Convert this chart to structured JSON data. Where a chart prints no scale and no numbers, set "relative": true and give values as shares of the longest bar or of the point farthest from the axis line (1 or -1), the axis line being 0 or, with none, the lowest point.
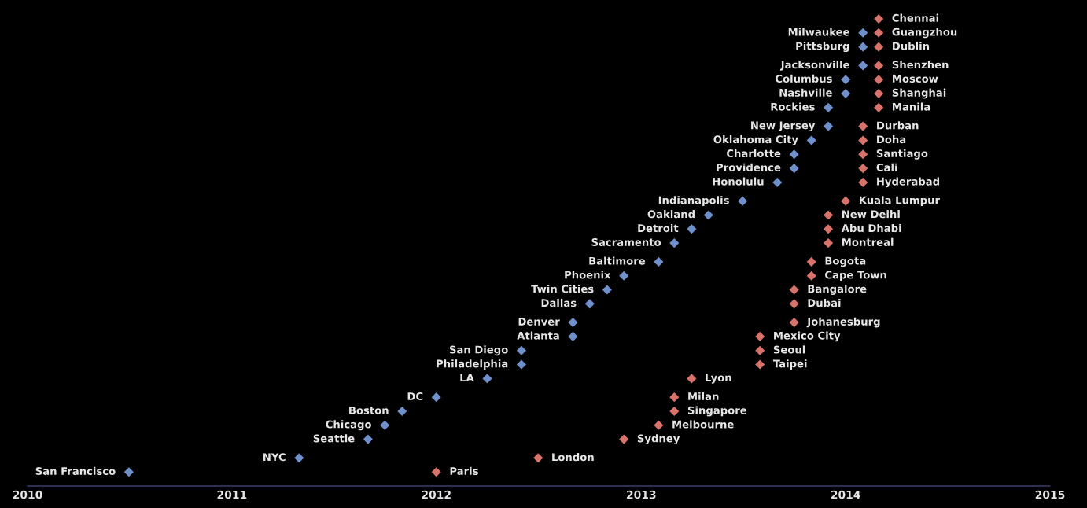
{
  "chart_data": {
    "type": "scatter",
    "relative": true,
    "marker": "diamond",
    "tick_labels": "x",
    "grid": false,
    "legend": false,
    "xlim": [
      "2010",
      "2015"
    ],
    "xticks": [
      "2010",
      "2011",
      "2012",
      "2013",
      "2014",
      "2015"
    ],
    "series": [
      {
        "color": "#7090cc",
        "x": [
          "2010-07",
          "2011-05",
          "2011-09",
          "2011-10",
          "2011-11",
          "2012-01",
          "2012-04",
          "2012-06",
          "2012-06",
          "2012-09",
          "2012-09",
          "2012-10",
          "2012-11",
          "2012-12",
          "2013-02",
          "2013-03",
          "2013-04",
          "2013-05",
          "2013-07",
          "2013-09",
          "2013-10",
          "2013-10",
          "2013-11",
          "2013-12",
          "2013-12",
          "2014-01",
          "2014-01",
          "2014-02",
          "2014-02",
          "2014-02"
        ],
        "values": [
          0.03,
          0.06,
          0.1,
          0.13,
          0.16,
          0.19,
          0.23,
          0.26,
          0.29,
          0.32,
          0.35,
          0.39,
          0.42,
          0.45,
          0.48,
          0.52,
          0.55,
          0.58,
          0.61,
          0.65,
          0.68,
          0.71,
          0.74,
          0.77,
          0.81,
          0.84,
          0.87,
          0.9,
          0.94,
          0.97
        ]
      },
      {
        "color": "#d8736b",
        "x": [
          "2012-01",
          "2012-07",
          "2012-12",
          "2013-02",
          "2013-03",
          "2013-03",
          "2013-04",
          "2013-08",
          "2013-08",
          "2013-08",
          "2013-10",
          "2013-10",
          "2013-10",
          "2013-11",
          "2013-11",
          "2013-12",
          "2013-12",
          "2013-12",
          "2014-01",
          "2014-02",
          "2014-02",
          "2014-02",
          "2014-02",
          "2014-02",
          "2014-03",
          "2014-03",
          "2014-03",
          "2014-03",
          "2014-03",
          "2014-03",
          "2014-03"
        ],
        "values": [
          0.03,
          0.06,
          0.1,
          0.13,
          0.16,
          0.19,
          0.23,
          0.26,
          0.29,
          0.32,
          0.35,
          0.39,
          0.42,
          0.45,
          0.48,
          0.52,
          0.55,
          0.58,
          0.61,
          0.65,
          0.68,
          0.71,
          0.74,
          0.77,
          0.81,
          0.84,
          0.87,
          0.9,
          0.94,
          0.97,
          1
        ]
      }
    ],
    "annotations": [
      {
        "text": "San Francisco",
        "x": "2010-07",
        "y": 0.03
      },
      {
        "text": "NYC",
        "x": "2011-05",
        "y": 0.06
      },
      {
        "text": "Seattle",
        "x": "2011-09",
        "y": 0.1
      },
      {
        "text": "Chicago",
        "x": "2011-10",
        "y": 0.13
      },
      {
        "text": "Boston",
        "x": "2011-11",
        "y": 0.16
      },
      {
        "text": "DC",
        "x": "2012-01",
        "y": 0.19
      },
      {
        "text": "LA",
        "x": "2012-04",
        "y": 0.23
      },
      {
        "text": "Philadelphia",
        "x": "2012-06",
        "y": 0.26
      },
      {
        "text": "San Diego",
        "x": "2012-06",
        "y": 0.29
      },
      {
        "text": "Atlanta",
        "x": "2012-09",
        "y": 0.32
      },
      {
        "text": "Denver",
        "x": "2012-09",
        "y": 0.35
      },
      {
        "text": "Dallas",
        "x": "2012-10",
        "y": 0.39
      },
      {
        "text": "Twin Cities",
        "x": "2012-11",
        "y": 0.42
      },
      {
        "text": "Phoenix",
        "x": "2012-12",
        "y": 0.45
      },
      {
        "text": "Baltimore",
        "x": "2013-02",
        "y": 0.48
      },
      {
        "text": "Sacramento",
        "x": "2013-03",
        "y": 0.52
      },
      {
        "text": "Detroit",
        "x": "2013-04",
        "y": 0.55
      },
      {
        "text": "Oakland",
        "x": "2013-05",
        "y": 0.58
      },
      {
        "text": "Indianapolis",
        "x": "2013-07",
        "y": 0.61
      },
      {
        "text": "Honolulu",
        "x": "2013-09",
        "y": 0.65
      },
      {
        "text": "Providence",
        "x": "2013-10",
        "y": 0.68
      },
      {
        "text": "Charlotte",
        "x": "2013-10",
        "y": 0.71
      },
      {
        "text": "Oklahoma City",
        "x": "2013-11",
        "y": 0.74
      },
      {
        "text": "New Jersey",
        "x": "2013-12",
        "y": 0.77
      },
      {
        "text": "Rockies",
        "x": "2013-12",
        "y": 0.81
      },
      {
        "text": "Nashville",
        "x": "2014-01",
        "y": 0.84
      },
      {
        "text": "Columbus",
        "x": "2014-01",
        "y": 0.87
      },
      {
        "text": "Jacksonville",
        "x": "2014-02",
        "y": 0.9
      },
      {
        "text": "Pittsburg",
        "x": "2014-02",
        "y": 0.94
      },
      {
        "text": "Milwaukee",
        "x": "2014-02",
        "y": 0.97
      },
      {
        "text": "Paris",
        "x": "2012-01",
        "y": 0.03
      },
      {
        "text": "London",
        "x": "2012-07",
        "y": 0.06
      },
      {
        "text": "Sydney",
        "x": "2012-12",
        "y": 0.1
      },
      {
        "text": "Melbourne",
        "x": "2013-02",
        "y": 0.13
      },
      {
        "text": "Singapore",
        "x": "2013-03",
        "y": 0.16
      },
      {
        "text": "Milan",
        "x": "2013-03",
        "y": 0.19
      },
      {
        "text": "Lyon",
        "x": "2013-04",
        "y": 0.23
      },
      {
        "text": "Taipei",
        "x": "2013-08",
        "y": 0.26
      },
      {
        "text": "Seoul",
        "x": "2013-08",
        "y": 0.29
      },
      {
        "text": "Mexico City",
        "x": "2013-08",
        "y": 0.32
      },
      {
        "text": "Johanesburg",
        "x": "2013-10",
        "y": 0.35
      },
      {
        "text": "Dubai",
        "x": "2013-10",
        "y": 0.39
      },
      {
        "text": "Bangalore",
        "x": "2013-10",
        "y": 0.42
      },
      {
        "text": "Cape Town",
        "x": "2013-11",
        "y": 0.45
      },
      {
        "text": "Bogota",
        "x": "2013-11",
        "y": 0.48
      },
      {
        "text": "Montreal",
        "x": "2013-12",
        "y": 0.52
      },
      {
        "text": "Abu Dhabi",
        "x": "2013-12",
        "y": 0.55
      },
      {
        "text": "New Delhi",
        "x": "2013-12",
        "y": 0.58
      },
      {
        "text": "Kuala Lumpur",
        "x": "2014-01",
        "y": 0.61
      },
      {
        "text": "Hyderabad",
        "x": "2014-02",
        "y": 0.65
      },
      {
        "text": "Cali",
        "x": "2014-02",
        "y": 0.68
      },
      {
        "text": "Santiago",
        "x": "2014-02",
        "y": 0.71
      },
      {
        "text": "Doha",
        "x": "2014-02",
        "y": 0.74
      },
      {
        "text": "Durban",
        "x": "2014-02",
        "y": 0.77
      },
      {
        "text": "Manila",
        "x": "2014-03",
        "y": 0.81
      },
      {
        "text": "Shanghai",
        "x": "2014-03",
        "y": 0.84
      },
      {
        "text": "Moscow",
        "x": "2014-03",
        "y": 0.87
      },
      {
        "text": "Shenzhen",
        "x": "2014-03",
        "y": 0.9
      },
      {
        "text": "Dublin",
        "x": "2014-03",
        "y": 0.94
      },
      {
        "text": "Guangzhou",
        "x": "2014-03",
        "y": 0.97
      },
      {
        "text": "Chennai",
        "x": "2014-03",
        "y": 1
      }
    ]
  }
}
